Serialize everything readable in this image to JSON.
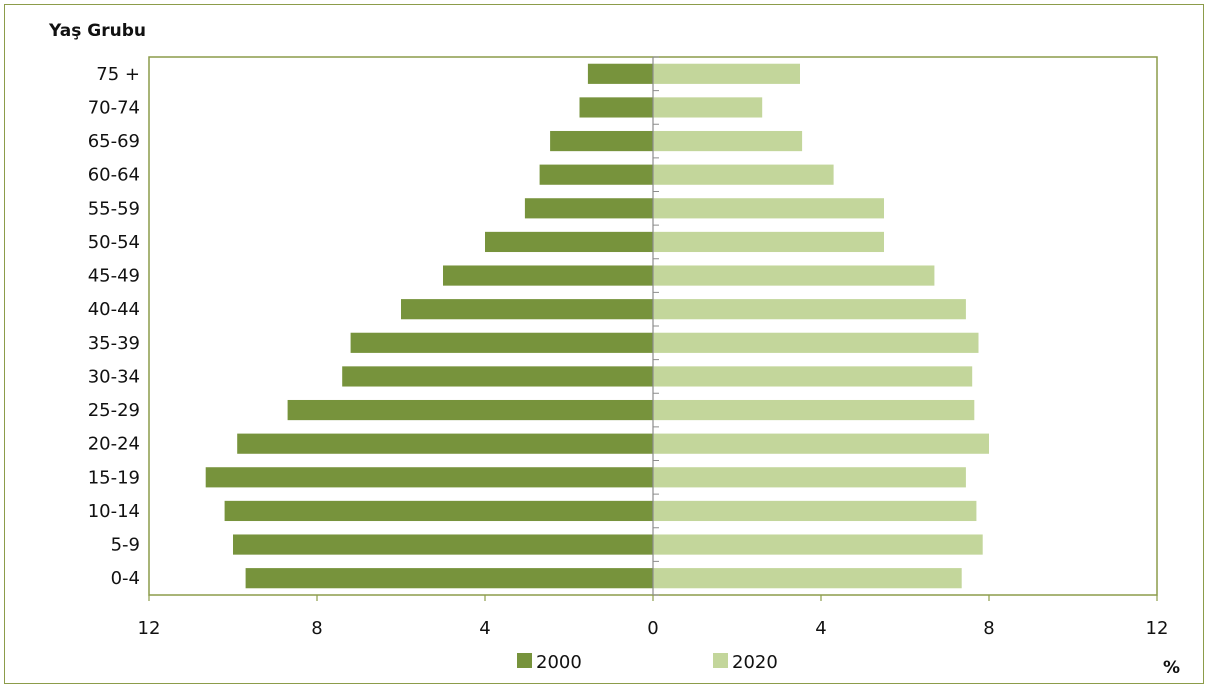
{
  "chart_data": {
    "type": "bar",
    "orientation": "horizontal-population-pyramid",
    "y_axis_title": "Yaş Grubu",
    "x_unit_label": "%",
    "categories": [
      "0-4",
      "5-9",
      "10-14",
      "15-19",
      "20-24",
      "25-29",
      "30-34",
      "35-39",
      "40-44",
      "45-49",
      "50-54",
      "55-59",
      "60-64",
      "65-69",
      "70-74",
      "75 +"
    ],
    "series": [
      {
        "name": "2000",
        "direction": "left",
        "color": "#77933c",
        "values": [
          9.7,
          10.0,
          10.2,
          10.65,
          9.9,
          8.7,
          7.4,
          7.2,
          6.0,
          5.0,
          4.0,
          3.05,
          2.7,
          2.45,
          1.75,
          1.55
        ]
      },
      {
        "name": "2020",
        "direction": "right",
        "color": "#c3d69b",
        "values": [
          7.35,
          7.85,
          7.7,
          7.45,
          8.0,
          7.65,
          7.6,
          7.75,
          7.45,
          6.7,
          5.5,
          5.5,
          4.3,
          3.55,
          2.6,
          3.5
        ]
      }
    ],
    "xlim": [
      -12,
      12
    ],
    "x_ticks": [
      -12,
      -8,
      -4,
      0,
      4,
      8,
      12
    ],
    "x_tick_labels": [
      "12",
      "8",
      "4",
      "0",
      "4",
      "8",
      "12"
    ],
    "grid": false,
    "legend_position": "bottom"
  },
  "colors": {
    "plot_border": "#8c9c4a",
    "axis_line": "#8c8c8c",
    "bar_2000": "#77933c",
    "bar_2020": "#c3d69b"
  }
}
